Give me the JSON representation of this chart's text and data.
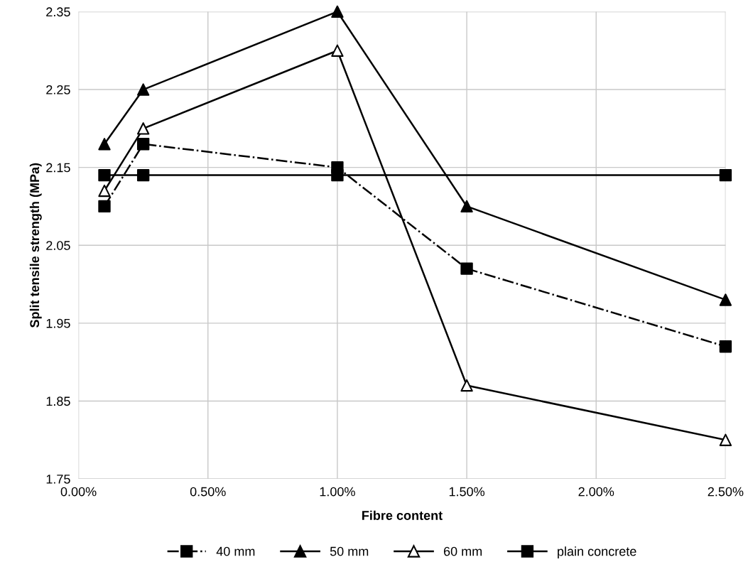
{
  "chart_data": {
    "type": "line",
    "xlabel": "Fibre content",
    "ylabel": "Split tensile strength (MPa)",
    "xlim": [
      0,
      2.5
    ],
    "ylim": [
      1.75,
      2.35
    ],
    "xticks": [
      {
        "value": 0,
        "label": "0.00%"
      },
      {
        "value": 0.5,
        "label": "0.50%"
      },
      {
        "value": 1.0,
        "label": "1.00%"
      },
      {
        "value": 1.5,
        "label": "1.50%"
      },
      {
        "value": 2.0,
        "label": "2.00%"
      },
      {
        "value": 2.5,
        "label": "2.50%"
      }
    ],
    "yticks": [
      1.75,
      1.85,
      1.95,
      2.05,
      2.15,
      2.25,
      2.35
    ],
    "grid": true,
    "legend": "bottom",
    "series": [
      {
        "name": "40 mm",
        "color": "#000000",
        "marker": "square",
        "line_style": "dashdot",
        "x": [
          0.1,
          0.25,
          1.0,
          1.5,
          2.5
        ],
        "values": [
          2.1,
          2.18,
          2.15,
          2.02,
          1.92
        ]
      },
      {
        "name": "50 mm",
        "color": "#000000",
        "marker": "triangle",
        "line_style": "solid",
        "x": [
          0.1,
          0.25,
          1.0,
          1.5,
          2.5
        ],
        "values": [
          2.18,
          2.25,
          2.35,
          2.1,
          1.98
        ]
      },
      {
        "name": "60 mm",
        "color": "#000000",
        "marker": "triangle",
        "colors": [
          "#ffffff",
          "#ffffff",
          "#ffffff",
          "#ffffff",
          "#ffffff"
        ],
        "line_style": "solid",
        "x": [
          0.1,
          0.25,
          1.0,
          1.5,
          2.5
        ],
        "values": [
          2.12,
          2.2,
          2.3,
          1.87,
          1.8
        ]
      },
      {
        "name": "plain concrete",
        "color": "#000000",
        "marker": "square",
        "line_style": "solid",
        "x": [
          0.1,
          0.25,
          1.0,
          2.5
        ],
        "values": [
          2.14,
          2.14,
          2.14,
          2.14
        ]
      }
    ]
  }
}
